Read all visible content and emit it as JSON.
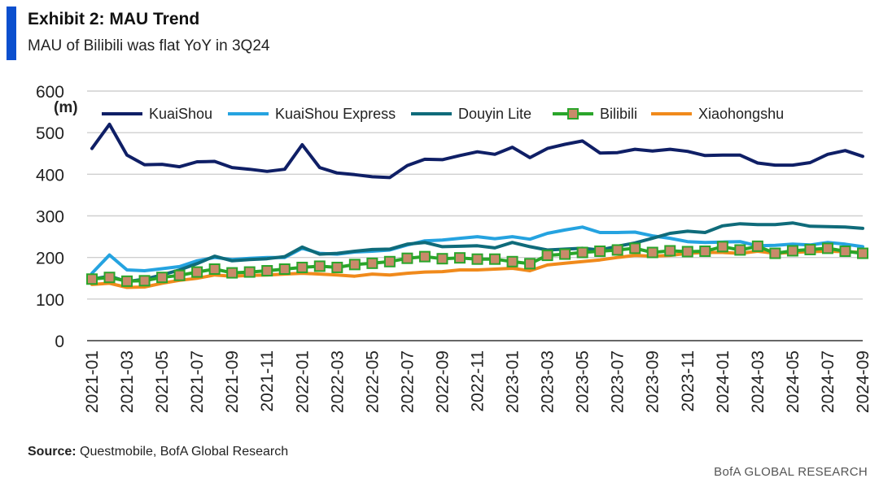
{
  "header": {
    "title": "Exhibit 2: MAU Trend",
    "subtitle": "MAU of Bilibili was flat YoY in 3Q24"
  },
  "footer": {
    "source_label": "Source:",
    "source_text": " Questmobile, BofA Global Research",
    "brand": "BofA GLOBAL RESEARCH"
  },
  "colors": {
    "accent": "#0b4fce",
    "kuaishou": "#0f1f66",
    "kuaishou_express": "#25a3e0",
    "douyin_lite": "#0f6b7a",
    "bilibili_line": "#2aa52a",
    "bilibili_marker": "#c98a6a",
    "xiaohongshu": "#f08a1c"
  },
  "chart_data": {
    "type": "line",
    "y_unit": "(m)",
    "ylim": [
      0,
      600
    ],
    "yticks": [
      0,
      100,
      200,
      300,
      400,
      500,
      600
    ],
    "grid": true,
    "legend_position": "top",
    "x": [
      "2021-01",
      "2021-02",
      "2021-03",
      "2021-04",
      "2021-05",
      "2021-06",
      "2021-07",
      "2021-08",
      "2021-09",
      "2021-10",
      "2021-11",
      "2021-12",
      "2022-01",
      "2022-02",
      "2022-03",
      "2022-04",
      "2022-05",
      "2022-06",
      "2022-07",
      "2022-08",
      "2022-09",
      "2022-10",
      "2022-11",
      "2022-12",
      "2023-01",
      "2023-02",
      "2023-03",
      "2023-04",
      "2023-05",
      "2023-06",
      "2023-07",
      "2023-08",
      "2023-09",
      "2023-10",
      "2023-11",
      "2023-12",
      "2024-01",
      "2024-02",
      "2024-03",
      "2024-04",
      "2024-05",
      "2024-06",
      "2024-07",
      "2024-08",
      "2024-09"
    ],
    "xtick_labels": [
      "2021-01",
      "2021-03",
      "2021-05",
      "2021-07",
      "2021-09",
      "2021-11",
      "2022-01",
      "2022-03",
      "2022-05",
      "2022-07",
      "2022-09",
      "2022-11",
      "2023-01",
      "2023-03",
      "2023-05",
      "2023-07",
      "2023-09",
      "2023-11",
      "2024-01",
      "2024-03",
      "2024-05",
      "2024-07",
      "2024-09"
    ],
    "series": [
      {
        "name": "KuaiShou",
        "values": [
          462,
          520,
          446,
          423,
          424,
          418,
          430,
          431,
          416,
          412,
          407,
          412,
          471,
          416,
          403,
          399,
          394,
          392,
          421,
          436,
          435,
          445,
          454,
          448,
          465,
          440,
          462,
          472,
          480,
          451,
          452,
          460,
          456,
          460,
          455,
          445,
          446,
          446,
          427,
          422,
          422,
          428,
          448,
          457,
          443
        ]
      },
      {
        "name": "KuaiShou Express",
        "values": [
          162,
          206,
          170,
          168,
          173,
          178,
          192,
          200,
          195,
          198,
          200,
          200,
          222,
          210,
          208,
          213,
          215,
          218,
          230,
          240,
          242,
          246,
          250,
          245,
          250,
          244,
          258,
          266,
          273,
          260,
          260,
          261,
          252,
          246,
          238,
          236,
          237,
          238,
          228,
          229,
          232,
          230,
          236,
          232,
          226
        ]
      },
      {
        "name": "Douyin Lite",
        "values": [
          148,
          155,
          142,
          148,
          158,
          170,
          185,
          203,
          192,
          195,
          197,
          202,
          225,
          208,
          210,
          215,
          219,
          220,
          232,
          236,
          226,
          227,
          228,
          223,
          236,
          226,
          218,
          220,
          222,
          218,
          227,
          235,
          246,
          258,
          263,
          260,
          276,
          281,
          279,
          279,
          283,
          275,
          274,
          273,
          270
        ]
      },
      {
        "name": "Bilibili",
        "values": [
          148,
          152,
          143,
          144,
          152,
          157,
          165,
          172,
          163,
          165,
          168,
          172,
          176,
          179,
          176,
          183,
          186,
          190,
          198,
          202,
          197,
          199,
          196,
          196,
          190,
          185,
          205,
          208,
          212,
          215,
          218,
          222,
          212,
          216,
          214,
          215,
          226,
          218,
          227,
          210,
          216,
          219,
          222,
          215,
          210
        ]
      },
      {
        "name": "Xiaohongshu",
        "values": [
          135,
          138,
          128,
          129,
          138,
          145,
          150,
          158,
          155,
          157,
          158,
          160,
          162,
          160,
          158,
          155,
          160,
          158,
          162,
          165,
          166,
          170,
          170,
          172,
          174,
          168,
          182,
          186,
          190,
          194,
          200,
          205,
          203,
          205,
          210,
          212,
          212,
          210,
          215,
          210,
          212,
          214,
          215,
          214,
          212
        ]
      }
    ]
  }
}
